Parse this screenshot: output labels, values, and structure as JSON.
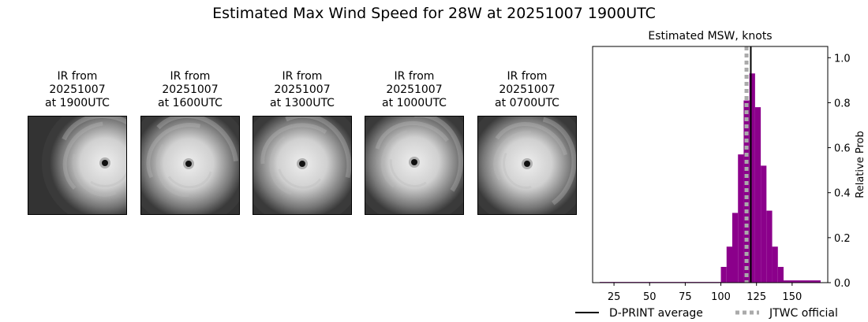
{
  "title": "Estimated Max Wind Speed for 28W at 20251007 1900UTC",
  "ir_panels": [
    {
      "line1": "IR from",
      "line2": "20251007",
      "line3": "at 1900UTC"
    },
    {
      "line1": "IR from",
      "line2": "20251007",
      "line3": "at 1600UTC"
    },
    {
      "line1": "IR from",
      "line2": "20251007",
      "line3": "at 1300UTC"
    },
    {
      "line1": "IR from",
      "line2": "20251007",
      "line3": "at 1000UTC"
    },
    {
      "line1": "IR from",
      "line2": "20251007",
      "line3": "at 0700UTC"
    }
  ],
  "chart_data": {
    "type": "bar",
    "title": "Estimated MSW, knots",
    "xlabel": "",
    "ylabel": "Relative Prob",
    "xlim": [
      10,
      175
    ],
    "ylim": [
      0,
      1.05
    ],
    "xticks": [
      25,
      50,
      75,
      100,
      125,
      150
    ],
    "yticks": [
      0.0,
      0.2,
      0.4,
      0.6,
      0.8,
      1.0
    ],
    "y_axis_side": "right",
    "bar_color": "#8b008b",
    "bins": [
      {
        "x0": 15,
        "x1": 100,
        "value": 0.003
      },
      {
        "x0": 100,
        "x1": 104,
        "value": 0.07
      },
      {
        "x0": 104,
        "x1": 108,
        "value": 0.16
      },
      {
        "x0": 108,
        "x1": 112,
        "value": 0.31
      },
      {
        "x0": 112,
        "x1": 116,
        "value": 0.57
      },
      {
        "x0": 116,
        "x1": 120,
        "value": 0.81
      },
      {
        "x0": 120,
        "x1": 124,
        "value": 0.93
      },
      {
        "x0": 124,
        "x1": 128,
        "value": 0.78
      },
      {
        "x0": 128,
        "x1": 132,
        "value": 0.52
      },
      {
        "x0": 132,
        "x1": 136,
        "value": 0.32
      },
      {
        "x0": 136,
        "x1": 140,
        "value": 0.16
      },
      {
        "x0": 140,
        "x1": 144,
        "value": 0.07
      },
      {
        "x0": 144,
        "x1": 170,
        "value": 0.01
      }
    ],
    "reference_lines": [
      {
        "name": "D-PRINT average",
        "x": 121,
        "style": "solid",
        "color": "#000000"
      },
      {
        "name": "JTWC official",
        "x": 118,
        "style": "dotted",
        "color": "#aaaaaa"
      }
    ],
    "legend_position": "bottom"
  }
}
